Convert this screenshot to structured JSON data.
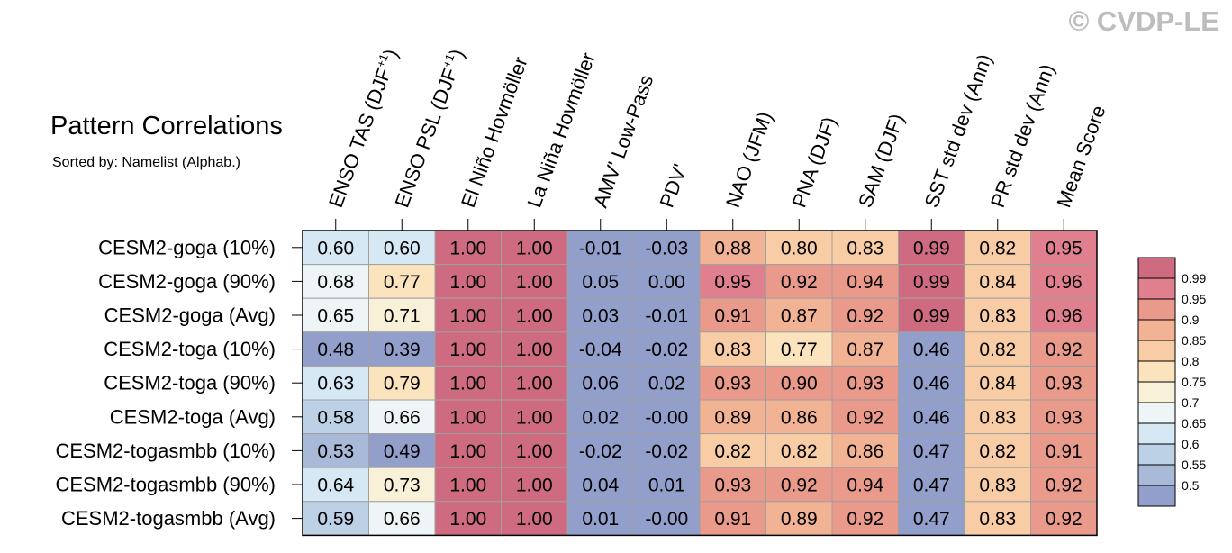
{
  "title": "Pattern Correlations",
  "subtitle": "Sorted by: Namelist (Alphab.)",
  "copyright": "© CVDP-LE",
  "chart_data": {
    "type": "heatmap",
    "columns": [
      {
        "base": "ENSO TAS (DJF",
        "sup": "+1",
        "tail": ")"
      },
      {
        "base": "ENSO PSL (DJF",
        "sup": "+1",
        "tail": ")"
      },
      {
        "base": "El Niño Hovmöller"
      },
      {
        "base": "La Niña Hovmöller"
      },
      {
        "base": "AMV' Low-Pass"
      },
      {
        "base": "PDV'"
      },
      {
        "base": "NAO (JFM)"
      },
      {
        "base": "PNA (DJF)"
      },
      {
        "base": "SAM (DJF)"
      },
      {
        "base": "SST std dev (Ann)"
      },
      {
        "base": "PR std dev (Ann)"
      },
      {
        "base": "Mean Score"
      }
    ],
    "rows": [
      "CESM2-goga (10%)",
      "CESM2-goga (90%)",
      "CESM2-goga (Avg)",
      "CESM2-toga (10%)",
      "CESM2-toga (90%)",
      "CESM2-toga (Avg)",
      "CESM2-togasmbb (10%)",
      "CESM2-togasmbb (90%)",
      "CESM2-togasmbb (Avg)"
    ],
    "values": [
      [
        "0.60",
        "0.60",
        "1.00",
        "1.00",
        "-0.01",
        "-0.03",
        "0.88",
        "0.80",
        "0.83",
        "0.99",
        "0.82",
        "0.95"
      ],
      [
        "0.68",
        "0.77",
        "1.00",
        "1.00",
        "0.05",
        "0.00",
        "0.95",
        "0.92",
        "0.94",
        "0.99",
        "0.84",
        "0.96"
      ],
      [
        "0.65",
        "0.71",
        "1.00",
        "1.00",
        "0.03",
        "-0.01",
        "0.91",
        "0.87",
        "0.92",
        "0.99",
        "0.83",
        "0.96"
      ],
      [
        "0.48",
        "0.39",
        "1.00",
        "1.00",
        "-0.04",
        "-0.02",
        "0.83",
        "0.77",
        "0.87",
        "0.46",
        "0.82",
        "0.92"
      ],
      [
        "0.63",
        "0.79",
        "1.00",
        "1.00",
        "0.06",
        "0.02",
        "0.93",
        "0.90",
        "0.93",
        "0.46",
        "0.84",
        "0.93"
      ],
      [
        "0.58",
        "0.66",
        "1.00",
        "1.00",
        "0.02",
        "-0.00",
        "0.89",
        "0.86",
        "0.92",
        "0.46",
        "0.83",
        "0.93"
      ],
      [
        "0.53",
        "0.49",
        "1.00",
        "1.00",
        "-0.02",
        "-0.02",
        "0.82",
        "0.82",
        "0.86",
        "0.47",
        "0.82",
        "0.91"
      ],
      [
        "0.64",
        "0.73",
        "1.00",
        "1.00",
        "0.04",
        "0.01",
        "0.93",
        "0.92",
        "0.94",
        "0.47",
        "0.83",
        "0.92"
      ],
      [
        "0.59",
        "0.66",
        "1.00",
        "1.00",
        "0.01",
        "-0.00",
        "0.91",
        "0.89",
        "0.92",
        "0.47",
        "0.83",
        "0.92"
      ]
    ],
    "colorbar": {
      "thresholds": [
        0.5,
        0.55,
        0.6,
        0.65,
        0.7,
        0.75,
        0.8,
        0.85,
        0.9,
        0.95,
        0.99
      ],
      "labels": [
        "0.5",
        "0.55",
        "0.6",
        "0.65",
        "0.7",
        "0.75",
        "0.8",
        "0.85",
        "0.9",
        "0.95",
        "0.99"
      ],
      "colors": [
        "#929fcb",
        "#a9bad9",
        "#bdd1e6",
        "#d5e8f3",
        "#eef5f6",
        "#f8f1d8",
        "#fbe3bd",
        "#f8cda5",
        "#f2b294",
        "#ea9a8b",
        "#e07f8d",
        "#cf6b80"
      ]
    }
  }
}
